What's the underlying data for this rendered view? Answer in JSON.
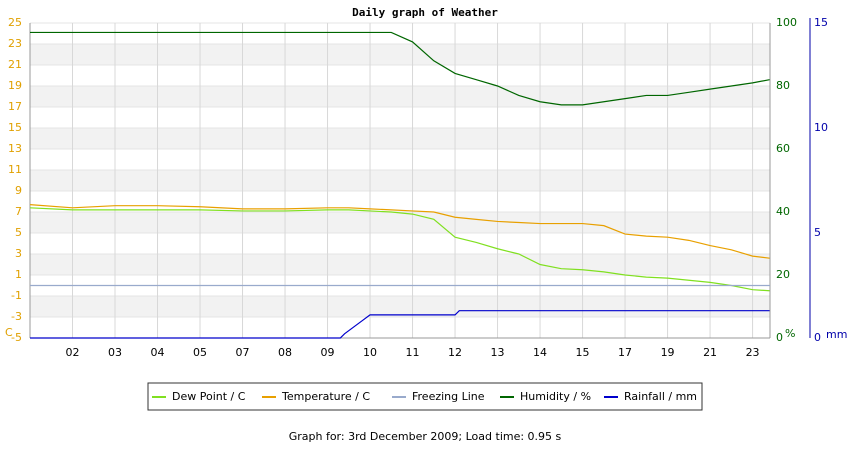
{
  "chart_data": {
    "type": "line",
    "title": "Daily graph of Weather",
    "footer": "Graph for: 3rd December 2009; Load time: 0.95 s",
    "ylabel": "C",
    "y2label": "%",
    "y3label": "mm",
    "xlim": [
      0,
      17.41
    ],
    "xticks": [
      {
        "value": 1,
        "label": "02"
      },
      {
        "value": 2,
        "label": "03"
      },
      {
        "value": 3,
        "label": "04"
      },
      {
        "value": 4,
        "label": "05"
      },
      {
        "value": 5,
        "label": "07"
      },
      {
        "value": 6,
        "label": "08"
      },
      {
        "value": 7,
        "label": "09"
      },
      {
        "value": 8,
        "label": "10"
      },
      {
        "value": 9,
        "label": "11"
      },
      {
        "value": 10,
        "label": "12"
      },
      {
        "value": 11,
        "label": "13"
      },
      {
        "value": 12,
        "label": "14"
      },
      {
        "value": 13,
        "label": "15"
      },
      {
        "value": 14,
        "label": "17"
      },
      {
        "value": 15,
        "label": "19"
      },
      {
        "value": 16,
        "label": "21"
      },
      {
        "value": 17,
        "label": "23"
      }
    ],
    "ylim": [
      -5,
      25
    ],
    "yticks": [
      -5,
      -3,
      -1,
      1,
      3,
      5,
      7,
      9,
      11,
      13,
      15,
      17,
      19,
      21,
      23,
      25
    ],
    "y2lim": [
      0,
      100
    ],
    "y2ticks": [
      0,
      20,
      40,
      60,
      80,
      100
    ],
    "y3lim": [
      0,
      15
    ],
    "y3ticks": [
      0,
      5,
      10,
      15
    ],
    "grid": true,
    "series": [
      {
        "name": "Dew Point / C",
        "color": "#80e020",
        "axis": "y",
        "x": [
          0,
          1,
          2,
          3,
          4,
          5,
          6,
          7,
          7.5,
          8,
          8.5,
          9,
          9.5,
          10,
          10.5,
          11,
          11.5,
          12,
          12.5,
          13,
          13.5,
          14,
          14.5,
          15,
          15.5,
          16,
          16.5,
          17,
          17.4
        ],
        "values": [
          7.4,
          7.2,
          7.2,
          7.2,
          7.2,
          7.1,
          7.1,
          7.2,
          7.2,
          7.1,
          7.0,
          6.8,
          6.3,
          4.6,
          4.1,
          3.5,
          3.0,
          2.0,
          1.6,
          1.5,
          1.3,
          1.0,
          0.8,
          0.7,
          0.5,
          0.3,
          0.0,
          -0.4,
          -0.5
        ]
      },
      {
        "name": "Temperature / C",
        "color": "#e8a000",
        "axis": "y",
        "x": [
          0,
          1,
          2,
          3,
          4,
          5,
          6,
          7,
          7.5,
          8,
          8.5,
          9,
          9.5,
          10,
          10.5,
          11,
          11.5,
          12,
          12.5,
          13,
          13.5,
          14,
          14.5,
          15,
          15.5,
          16,
          16.5,
          17,
          17.4
        ],
        "values": [
          7.7,
          7.4,
          7.6,
          7.6,
          7.5,
          7.3,
          7.3,
          7.4,
          7.4,
          7.3,
          7.2,
          7.1,
          7.0,
          6.5,
          6.3,
          6.1,
          6.0,
          5.9,
          5.9,
          5.9,
          5.7,
          4.9,
          4.7,
          4.6,
          4.3,
          3.8,
          3.4,
          2.8,
          2.6
        ]
      },
      {
        "name": "Freezing Line",
        "color": "#99aacc",
        "axis": "y",
        "x": [
          0,
          17.41
        ],
        "values": [
          0,
          0
        ]
      },
      {
        "name": "Humidity / %",
        "color": "#006600",
        "axis": "y2",
        "x": [
          0,
          8.5,
          9,
          9.5,
          10,
          10.5,
          11,
          11.5,
          12,
          12.5,
          13,
          13.5,
          14,
          14.5,
          15,
          15.5,
          16,
          16.5,
          17,
          17.4
        ],
        "values": [
          97,
          97,
          94,
          88,
          84,
          82,
          80,
          77,
          75,
          74,
          74,
          75,
          76,
          77,
          77,
          78,
          79,
          80,
          81,
          82
        ]
      },
      {
        "name": "Rainfall / mm",
        "color": "#0000cc",
        "axis": "y3",
        "x": [
          0,
          7.3,
          7.4,
          7.8,
          8,
          10,
          10.1,
          17.4
        ],
        "values": [
          0,
          0,
          0.2,
          0.8,
          1.1,
          1.1,
          1.3,
          1.3
        ]
      }
    ]
  }
}
